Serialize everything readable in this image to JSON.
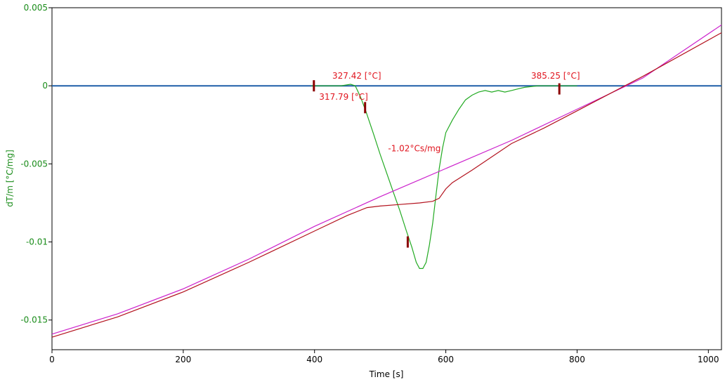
{
  "chart_data": {
    "type": "line",
    "title": "",
    "xlabel": "Time [s]",
    "ylabel": "dT/m  [°C/mg]",
    "xlim": [
      0,
      1020
    ],
    "ylim": [
      -0.0169,
      0.005
    ],
    "grid": false,
    "x_ticks": [
      0,
      200,
      400,
      600,
      800,
      1000
    ],
    "x_tick_labels": [
      "0",
      "200",
      "400",
      "600",
      "800",
      "1000"
    ],
    "y_ticks": [
      0.005,
      0,
      -0.005,
      -0.01,
      -0.015
    ],
    "y_tick_labels": [
      "0.005",
      "0",
      "-0.005",
      "-0.01",
      "-0.015"
    ],
    "colors": {
      "axis_y": "#1a8c1a",
      "annotation": "#e0141e",
      "marker": "#8b0000",
      "frame": "#000000"
    },
    "series": [
      {
        "color": "#1f5fa8",
        "x": [
          0,
          1020
        ],
        "y": [
          0.0,
          0.0
        ]
      },
      {
        "color": "#22aa22",
        "x": [
          395,
          420,
          440,
          455,
          462,
          470,
          478,
          490,
          500,
          510,
          520,
          530,
          540,
          548,
          555,
          560,
          565,
          570,
          575,
          580,
          585,
          590,
          595,
          600,
          610,
          620,
          630,
          640,
          650,
          660,
          670,
          680,
          690,
          700,
          710,
          720,
          740,
          760,
          780,
          800
        ],
        "y": [
          0.0,
          0.0,
          0.0,
          0.0001,
          0.0,
          -0.0007,
          -0.0016,
          -0.0031,
          -0.0044,
          -0.0056,
          -0.0068,
          -0.008,
          -0.0093,
          -0.0103,
          -0.0113,
          -0.0117,
          -0.0117,
          -0.0113,
          -0.0102,
          -0.0088,
          -0.007,
          -0.0053,
          -0.004,
          -0.003,
          -0.0022,
          -0.0015,
          -0.0009,
          -0.0006,
          -0.0004,
          -0.0003,
          -0.0004,
          -0.0003,
          -0.0004,
          -0.0003,
          -0.0002,
          -0.0001,
          0.0,
          0.0,
          0.0,
          0.0
        ]
      },
      {
        "color": "#cc22cc",
        "x": [
          0,
          100,
          200,
          300,
          400,
          500,
          600,
          700,
          800,
          900,
          1020
        ],
        "y": [
          -0.0159,
          -0.0146,
          -0.013,
          -0.0111,
          -0.009,
          -0.0071,
          -0.0053,
          -0.0035,
          -0.0015,
          0.0005,
          0.0039
        ]
      },
      {
        "color": "#b3121e",
        "x": [
          0,
          100,
          200,
          300,
          400,
          450,
          480,
          500,
          530,
          560,
          580,
          590,
          600,
          610,
          640,
          700,
          750,
          800,
          850,
          900,
          1020
        ],
        "y": [
          -0.0161,
          -0.0148,
          -0.0132,
          -0.0113,
          -0.0093,
          -0.0083,
          -0.0078,
          -0.0077,
          -0.0076,
          -0.0075,
          -0.0074,
          -0.0072,
          -0.0066,
          -0.0062,
          -0.0054,
          -0.0037,
          -0.0027,
          -0.0016,
          -0.0005,
          0.0006,
          0.0034
        ]
      }
    ],
    "markers": [
      {
        "x": 399,
        "y": 0.0
      },
      {
        "x": 477,
        "y": -0.0014
      },
      {
        "x": 542,
        "y": -0.01
      },
      {
        "x": 773,
        "y": -0.0002
      }
    ],
    "annotations": [
      {
        "text": "317.79 [°C]",
        "x": 407,
        "y": -0.0009
      },
      {
        "text": "327.42 [°C]",
        "x": 427,
        "y": 0.00045
      },
      {
        "text": "385.25 [°C]",
        "x": 730,
        "y": 0.00045
      },
      {
        "text": "-1.02°Cs/mg",
        "x": 512,
        "y": -0.0042
      }
    ]
  }
}
